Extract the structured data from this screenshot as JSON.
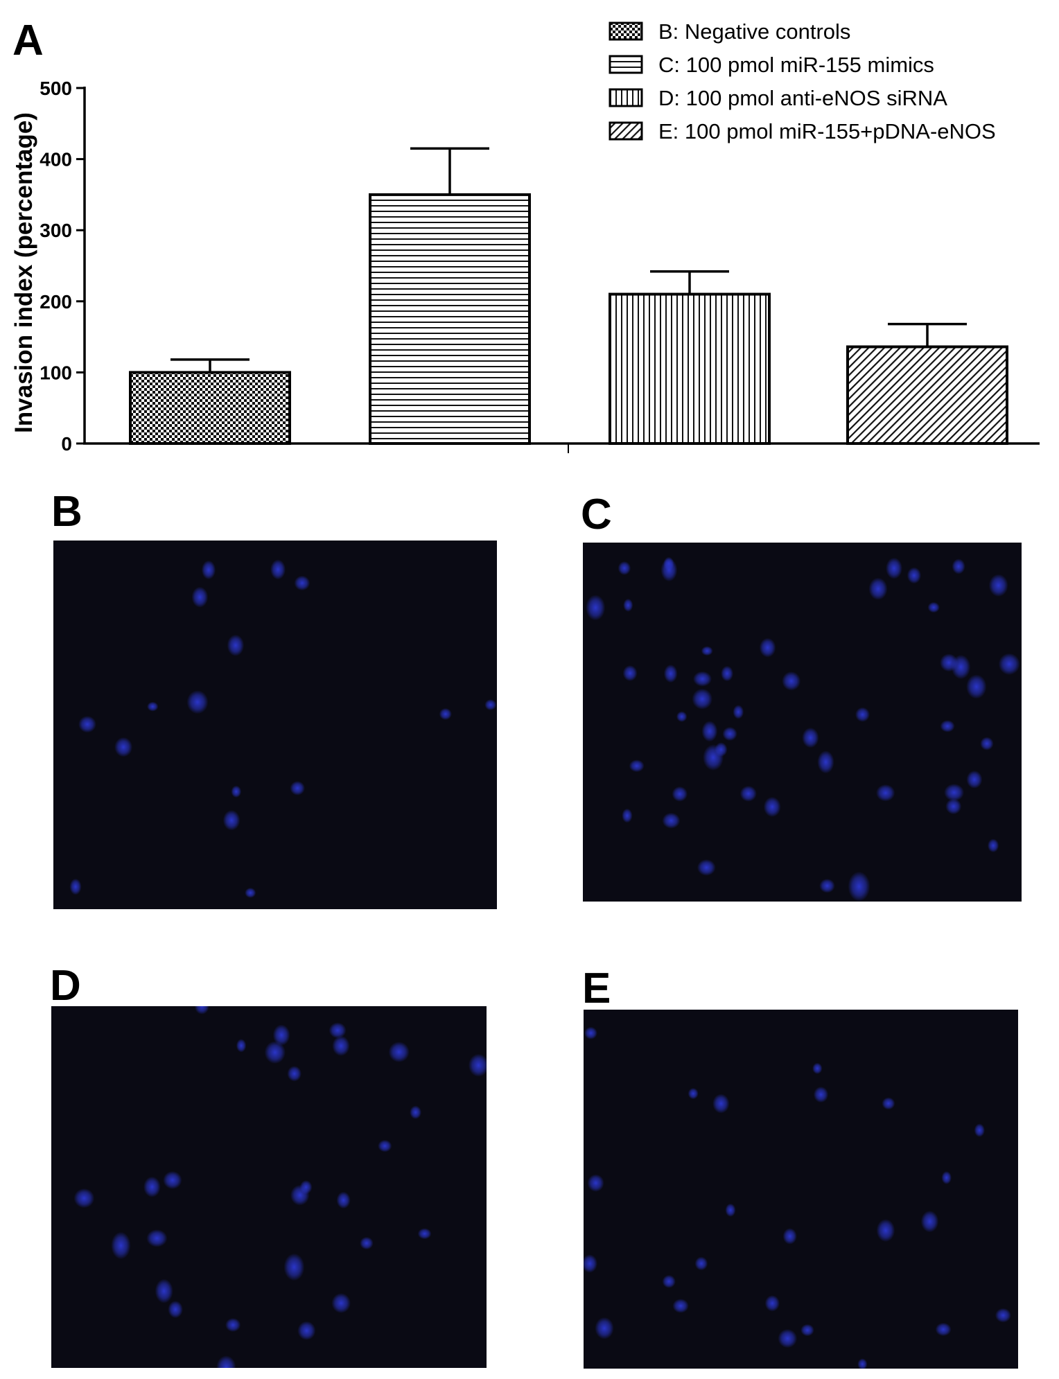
{
  "panels": {
    "a": "A",
    "b": "B",
    "c": "C",
    "d": "D",
    "e": "E"
  },
  "chart_data": {
    "type": "bar",
    "categories": [
      "B",
      "C",
      "D",
      "E"
    ],
    "values": [
      100,
      350,
      210,
      136
    ],
    "errors": [
      18,
      65,
      32,
      32
    ],
    "legend": [
      "B: Negative controls",
      "C: 100 pmol miR-155 mimics",
      "D: 100 pmol anti-eNOS siRNA",
      "E: 100 pmol miR-155+pDNA-eNOS"
    ],
    "patterns": [
      "checker",
      "horizontal",
      "vertical",
      "diagonal"
    ],
    "ylabel": "Invasion index (percentage)",
    "xlabel": "",
    "ylim": [
      0,
      500
    ],
    "yticks": [
      0,
      100,
      200,
      300,
      400,
      500
    ],
    "legend_position": "top-right",
    "grid": false
  },
  "micrographs": {
    "background": "#0a0a14",
    "nucleus_color": "#2a35c8"
  }
}
